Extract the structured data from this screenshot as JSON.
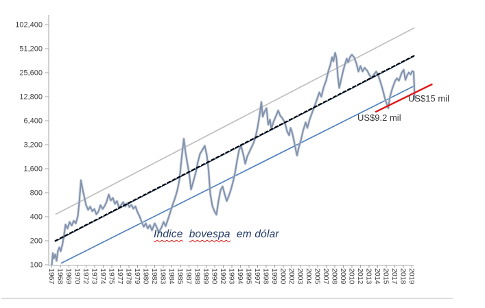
{
  "chart_data": {
    "type": "line",
    "title": "Indice bovespa em dólar",
    "title_parts": [
      "Indice",
      "bovespa",
      "em dólar"
    ],
    "annotations": [
      {
        "text": "US$9.2 mil"
      },
      {
        "text": "US$15 mil"
      }
    ],
    "colors": {
      "axis": "#A3A3A3",
      "tick_text": "#404040",
      "title_text": "#1F3864",
      "annotation_text": "#3A3A3A",
      "spellcheck_underline": "#E21414",
      "page_divider": "#DCDCDC",
      "background": "#FFFFFF"
    },
    "y_axis": {
      "scale": "log2",
      "min": 100,
      "max": 102400,
      "tick_labels": [
        "102,400",
        "51,200",
        "25,600",
        "12,800",
        "6,400",
        "3,200",
        "1,600",
        "800",
        "400",
        "200",
        "100"
      ]
    },
    "x_axis": {
      "start_year": 1967,
      "end_year": 2019,
      "tick_labels": [
        "1967",
        "1968",
        "1969",
        "1970",
        "1972",
        "1973",
        "1974",
        "1975",
        "1977",
        "1978",
        "1979",
        "1980",
        "1982",
        "1983",
        "1984",
        "1985",
        "1987",
        "1988",
        "1989",
        "1990",
        "1992",
        "1993",
        "1994",
        "1995",
        "1997",
        "1998",
        "1999",
        "2000",
        "2002",
        "2003",
        "2004",
        "2005",
        "2007",
        "2008",
        "2009",
        "2010",
        "2012",
        "2013",
        "2014",
        "2015",
        "2017",
        "2018",
        "2019"
      ]
    },
    "series": [
      {
        "name": "upper-channel-line",
        "color": "#BFBFBF",
        "width": 1.7,
        "points": [
          [
            1967.6,
            430
          ],
          [
            2019.8,
            93000
          ]
        ]
      },
      {
        "name": "lower-channel-line",
        "color": "#4F81BD",
        "width": 1.7,
        "points": [
          [
            1968.4,
            105
          ],
          [
            2019.9,
            17600
          ]
        ]
      },
      {
        "name": "bovespa-usd",
        "color": "#8494AE",
        "width": 2.2,
        "underlay": {
          "color": "#C2CBD8",
          "width": 4.2,
          "opacity": 0.5
        },
        "points": [
          [
            1967.0,
            100
          ],
          [
            1967.15,
            140
          ],
          [
            1967.3,
            120
          ],
          [
            1967.5,
            135
          ],
          [
            1967.7,
            112
          ],
          [
            1967.9,
            150
          ],
          [
            1968.1,
            165
          ],
          [
            1968.3,
            148
          ],
          [
            1968.55,
            180
          ],
          [
            1968.8,
            240
          ],
          [
            1969.0,
            320
          ],
          [
            1969.3,
            285
          ],
          [
            1969.6,
            345
          ],
          [
            1969.9,
            310
          ],
          [
            1970.2,
            355
          ],
          [
            1970.5,
            330
          ],
          [
            1970.8,
            410
          ],
          [
            1971.0,
            600
          ],
          [
            1971.25,
            1150
          ],
          [
            1971.5,
            880
          ],
          [
            1971.75,
            700
          ],
          [
            1972.0,
            560
          ],
          [
            1972.3,
            490
          ],
          [
            1972.6,
            535
          ],
          [
            1972.9,
            470
          ],
          [
            1973.2,
            500
          ],
          [
            1973.5,
            430
          ],
          [
            1973.8,
            465
          ],
          [
            1974.1,
            560
          ],
          [
            1974.4,
            500
          ],
          [
            1974.7,
            545
          ],
          [
            1975.0,
            620
          ],
          [
            1975.3,
            760
          ],
          [
            1975.6,
            640
          ],
          [
            1975.9,
            690
          ],
          [
            1976.2,
            580
          ],
          [
            1976.5,
            630
          ],
          [
            1976.8,
            520
          ],
          [
            1977.1,
            560
          ],
          [
            1977.4,
            610
          ],
          [
            1977.7,
            540
          ],
          [
            1978.0,
            590
          ],
          [
            1978.3,
            530
          ],
          [
            1978.6,
            565
          ],
          [
            1978.9,
            505
          ],
          [
            1979.2,
            540
          ],
          [
            1979.5,
            455
          ],
          [
            1979.8,
            405
          ],
          [
            1980.1,
            345
          ],
          [
            1980.4,
            300
          ],
          [
            1980.7,
            330
          ],
          [
            1981.0,
            285
          ],
          [
            1981.3,
            315
          ],
          [
            1981.6,
            270
          ],
          [
            1982.0,
            330
          ],
          [
            1982.3,
            295
          ],
          [
            1982.6,
            255
          ],
          [
            1983.0,
            295
          ],
          [
            1983.3,
            345
          ],
          [
            1983.6,
            305
          ],
          [
            1984.0,
            385
          ],
          [
            1984.3,
            465
          ],
          [
            1984.6,
            560
          ],
          [
            1985.0,
            700
          ],
          [
            1985.3,
            860
          ],
          [
            1985.6,
            1150
          ],
          [
            1986.0,
            2500
          ],
          [
            1986.25,
            3800
          ],
          [
            1986.5,
            2550
          ],
          [
            1986.75,
            1900
          ],
          [
            1987.0,
            1450
          ],
          [
            1987.3,
            880
          ],
          [
            1987.6,
            1080
          ],
          [
            1988.0,
            1450
          ],
          [
            1988.3,
            1950
          ],
          [
            1988.6,
            2450
          ],
          [
            1989.0,
            2800
          ],
          [
            1989.3,
            3100
          ],
          [
            1989.6,
            2350
          ],
          [
            1989.85,
            1550
          ],
          [
            1990.1,
            780
          ],
          [
            1990.4,
            550
          ],
          [
            1990.7,
            470
          ],
          [
            1991.0,
            425
          ],
          [
            1991.3,
            630
          ],
          [
            1991.6,
            860
          ],
          [
            1991.9,
            960
          ],
          [
            1992.2,
            770
          ],
          [
            1992.5,
            630
          ],
          [
            1992.8,
            730
          ],
          [
            1993.1,
            870
          ],
          [
            1993.4,
            1080
          ],
          [
            1993.7,
            1400
          ],
          [
            1994.0,
            2000
          ],
          [
            1994.3,
            2750
          ],
          [
            1994.6,
            3100
          ],
          [
            1995.0,
            2250
          ],
          [
            1995.2,
            1850
          ],
          [
            1995.5,
            2300
          ],
          [
            1995.8,
            2600
          ],
          [
            1996.1,
            2950
          ],
          [
            1996.4,
            3350
          ],
          [
            1996.7,
            4000
          ],
          [
            1997.0,
            5300
          ],
          [
            1997.3,
            7600
          ],
          [
            1997.55,
            11000
          ],
          [
            1997.75,
            7200
          ],
          [
            1998.0,
            8300
          ],
          [
            1998.3,
            9200
          ],
          [
            1998.55,
            5700
          ],
          [
            1998.8,
            6600
          ],
          [
            1999.0,
            5100
          ],
          [
            1999.35,
            6300
          ],
          [
            1999.7,
            7400
          ],
          [
            2000.0,
            8600
          ],
          [
            2000.3,
            7400
          ],
          [
            2000.6,
            6900
          ],
          [
            2001.0,
            6000
          ],
          [
            2001.3,
            4700
          ],
          [
            2001.6,
            4200
          ],
          [
            2001.8,
            5200
          ],
          [
            2002.0,
            4700
          ],
          [
            2002.3,
            3600
          ],
          [
            2002.55,
            2800
          ],
          [
            2002.75,
            2350
          ],
          [
            2003.0,
            2950
          ],
          [
            2003.3,
            3600
          ],
          [
            2003.6,
            4700
          ],
          [
            2004.0,
            6100
          ],
          [
            2004.25,
            5200
          ],
          [
            2004.6,
            6700
          ],
          [
            2005.0,
            8300
          ],
          [
            2005.3,
            9700
          ],
          [
            2005.6,
            11500
          ],
          [
            2006.0,
            14500
          ],
          [
            2006.3,
            12800
          ],
          [
            2006.6,
            16500
          ],
          [
            2007.0,
            20500
          ],
          [
            2007.3,
            26500
          ],
          [
            2007.6,
            32000
          ],
          [
            2007.85,
            40000
          ],
          [
            2008.05,
            35500
          ],
          [
            2008.3,
            45500
          ],
          [
            2008.5,
            39000
          ],
          [
            2008.7,
            23000
          ],
          [
            2008.9,
            16500
          ],
          [
            2009.1,
            19500
          ],
          [
            2009.4,
            25500
          ],
          [
            2009.7,
            32000
          ],
          [
            2010.0,
            38500
          ],
          [
            2010.2,
            34500
          ],
          [
            2010.5,
            40500
          ],
          [
            2010.75,
            43000
          ],
          [
            2011.1,
            39500
          ],
          [
            2011.4,
            33500
          ],
          [
            2011.7,
            26500
          ],
          [
            2012.0,
            31000
          ],
          [
            2012.3,
            26500
          ],
          [
            2012.6,
            29500
          ],
          [
            2013.0,
            27000
          ],
          [
            2013.3,
            24000
          ],
          [
            2013.6,
            22000
          ],
          [
            2014.0,
            24500
          ],
          [
            2014.3,
            26500
          ],
          [
            2014.6,
            23500
          ],
          [
            2015.0,
            18500
          ],
          [
            2015.3,
            15000
          ],
          [
            2015.6,
            11800
          ],
          [
            2015.85,
            10300
          ],
          [
            2016.05,
            9200
          ],
          [
            2016.3,
            12800
          ],
          [
            2016.6,
            15800
          ],
          [
            2017.0,
            19800
          ],
          [
            2017.3,
            21800
          ],
          [
            2017.6,
            20300
          ],
          [
            2018.0,
            25500
          ],
          [
            2018.3,
            27800
          ],
          [
            2018.55,
            20800
          ],
          [
            2018.8,
            23800
          ],
          [
            2019.05,
            25800
          ],
          [
            2019.3,
            24300
          ],
          [
            2019.55,
            26800
          ],
          [
            2019.75,
            26300
          ],
          [
            2019.9,
            12000
          ]
        ]
      },
      {
        "name": "mid-trend-solid",
        "color": "#1B3A63",
        "width": 1.3,
        "points": [
          [
            1967.5,
            196
          ],
          [
            2019.8,
            41000
          ]
        ]
      },
      {
        "name": "mid-trend-dashed",
        "color": "#000000",
        "width": 1.9,
        "dash": "4.5 3.5",
        "dy": -1,
        "points": [
          [
            1967.5,
            196
          ],
          [
            2019.8,
            41000
          ]
        ]
      },
      {
        "name": "support-line-red",
        "color": "#E21414",
        "width": 2.4,
        "points": [
          [
            2014.25,
            8300
          ],
          [
            2022.4,
            18300
          ]
        ]
      }
    ]
  }
}
